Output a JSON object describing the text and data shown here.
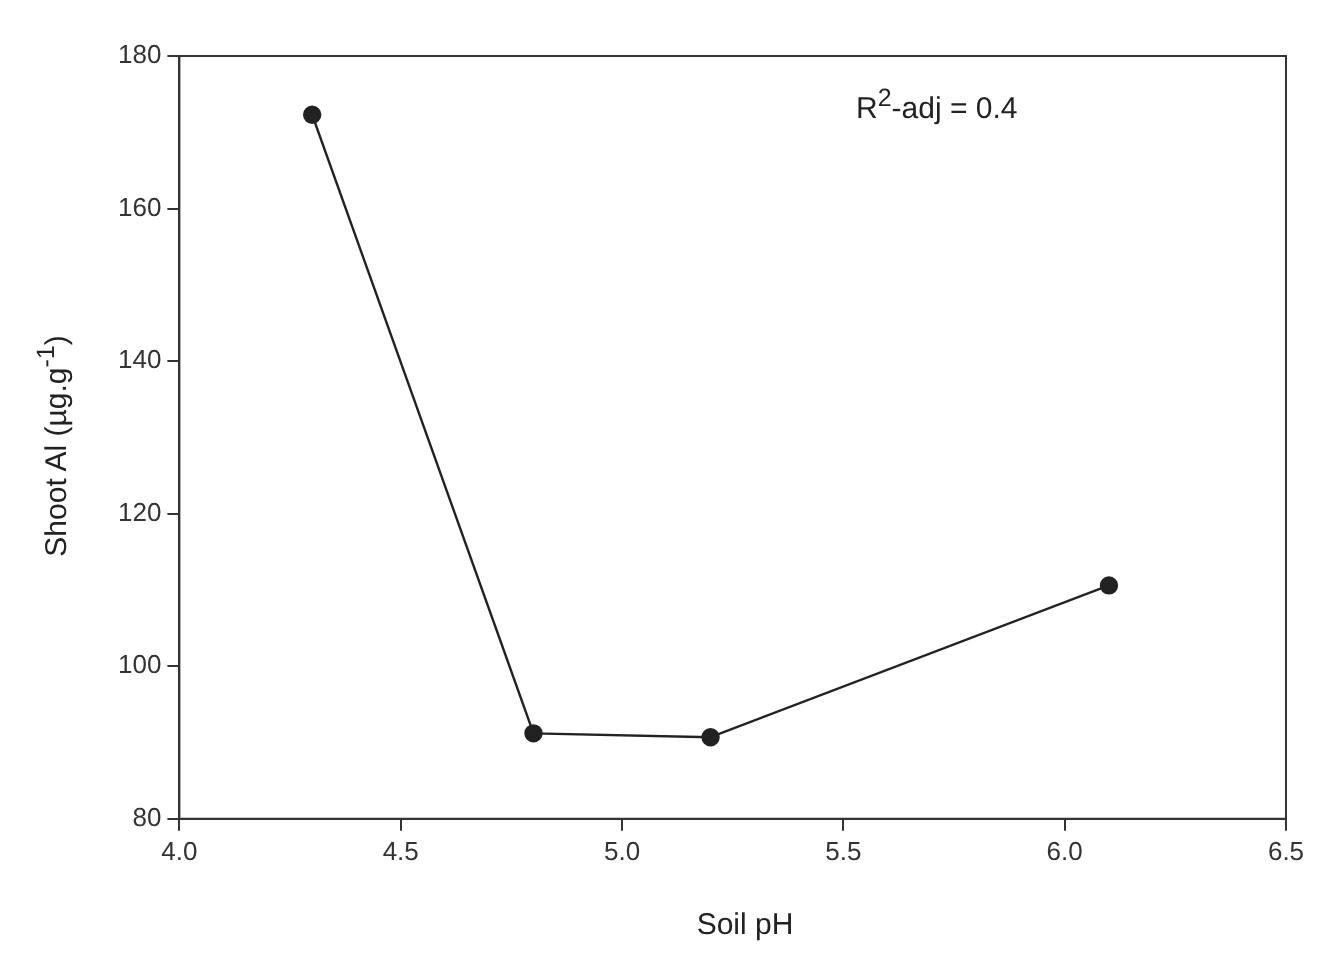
{
  "chart_data": {
    "type": "line",
    "xlabel": "Soil pH",
    "ylabel": "Shoot Al (µg.g$^{-1}$)",
    "annotations": [
      "R$^{2}$-adj = 0.4"
    ],
    "x": [
      4.3,
      4.8,
      5.2,
      6.1
    ],
    "series": [
      {
        "color": "#222222",
        "values": [
          172.3,
          91.2,
          90.7,
          110.6
        ]
      }
    ],
    "xlim": [
      4.0,
      6.5
    ],
    "xticks": [
      {
        "value": 4.0,
        "label": "4.0"
      },
      {
        "value": 4.5,
        "label": "4.5"
      },
      {
        "value": 5.0,
        "label": "5.0"
      },
      {
        "value": 5.5,
        "label": "5.5"
      },
      {
        "value": 6.0,
        "label": "6.0"
      },
      {
        "value": 6.5,
        "label": "6.5"
      }
    ],
    "ylim": [
      80,
      180
    ],
    "yticks": [
      80,
      100,
      120,
      140,
      160,
      180
    ],
    "grid": false,
    "legend": false,
    "marker": "circle",
    "line_style": "solid"
  }
}
